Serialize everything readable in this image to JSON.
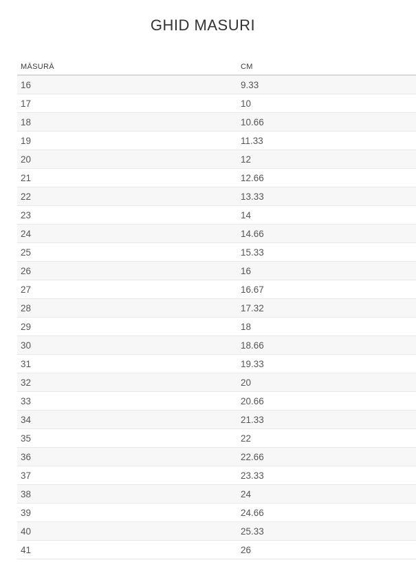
{
  "page": {
    "title": "GHID MASURI"
  },
  "table": {
    "headers": {
      "size": "MĂSURĂ",
      "cm": "CM"
    },
    "rows": [
      {
        "size": "16",
        "cm": "9.33"
      },
      {
        "size": "17",
        "cm": "10"
      },
      {
        "size": "18",
        "cm": "10.66"
      },
      {
        "size": "19",
        "cm": "11.33"
      },
      {
        "size": "20",
        "cm": "12"
      },
      {
        "size": "21",
        "cm": "12.66"
      },
      {
        "size": "22",
        "cm": "13.33"
      },
      {
        "size": "23",
        "cm": "14"
      },
      {
        "size": "24",
        "cm": "14.66"
      },
      {
        "size": "25",
        "cm": "15.33"
      },
      {
        "size": "26",
        "cm": "16"
      },
      {
        "size": "27",
        "cm": "16.67"
      },
      {
        "size": "28",
        "cm": "17.32"
      },
      {
        "size": "29",
        "cm": "18"
      },
      {
        "size": "30",
        "cm": "18.66"
      },
      {
        "size": "31",
        "cm": "19.33"
      },
      {
        "size": "32",
        "cm": "20"
      },
      {
        "size": "33",
        "cm": "20.66"
      },
      {
        "size": "34",
        "cm": "21.33"
      },
      {
        "size": "35",
        "cm": "22"
      },
      {
        "size": "36",
        "cm": "22.66"
      },
      {
        "size": "37",
        "cm": "23.33"
      },
      {
        "size": "38",
        "cm": "24"
      },
      {
        "size": "39",
        "cm": "24.66"
      },
      {
        "size": "40",
        "cm": "25.33"
      },
      {
        "size": "41",
        "cm": "26"
      }
    ],
    "colors": {
      "zebra_row_bg": "#f7f7f7",
      "row_divider": "#e8e8e8",
      "header_divider": "#d9d9d9",
      "text": "#555555",
      "header_text": "#3c3c3c",
      "title_text": "#333333"
    }
  }
}
